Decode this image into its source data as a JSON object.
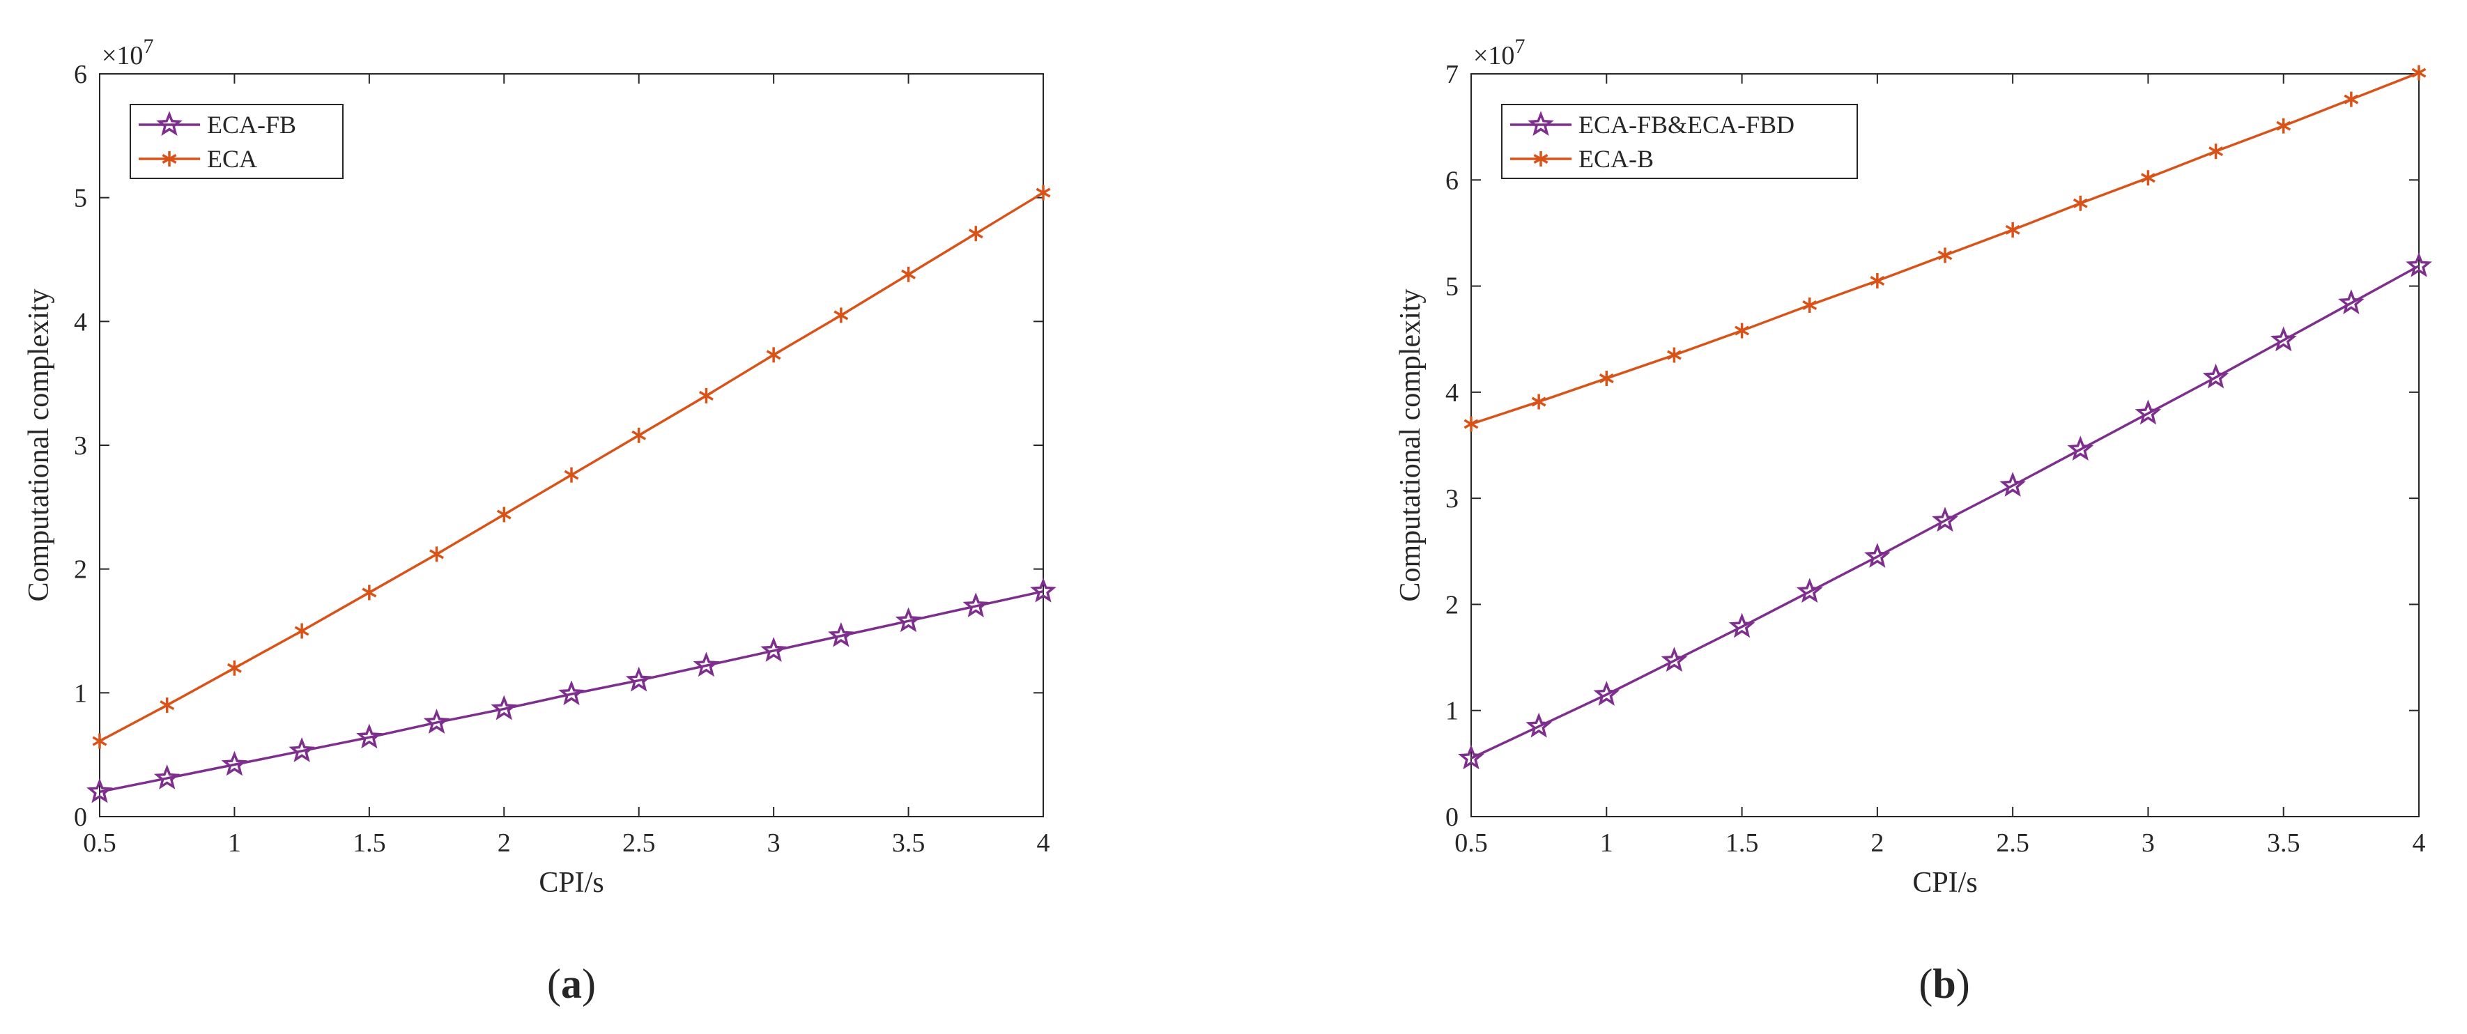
{
  "chart_data": [
    {
      "type": "line",
      "panel": "a",
      "xlabel": "CPI/s",
      "ylabel": "Computational complexity",
      "y_scale_label": "×10",
      "y_scale_exponent": "7",
      "xlim": [
        0.5,
        4
      ],
      "ylim": [
        0,
        6
      ],
      "xticks": [
        0.5,
        1,
        1.5,
        2,
        2.5,
        3,
        3.5,
        4
      ],
      "xtick_labels": [
        "0.5",
        "1",
        "1.5",
        "2",
        "2.5",
        "3",
        "3.5",
        "4"
      ],
      "yticks": [
        0,
        1,
        2,
        3,
        4,
        5,
        6
      ],
      "ytick_labels": [
        "0",
        "1",
        "2",
        "3",
        "4",
        "5",
        "6"
      ],
      "legend_position": "top-left",
      "x": [
        0.5,
        0.75,
        1,
        1.25,
        1.5,
        1.75,
        2,
        2.25,
        2.5,
        2.75,
        3,
        3.25,
        3.5,
        3.75,
        4
      ],
      "series": [
        {
          "name": "ECA-FB",
          "color": "#7E2F8E",
          "marker": "star",
          "values": [
            0.2,
            0.31,
            0.42,
            0.53,
            0.64,
            0.76,
            0.87,
            0.99,
            1.1,
            1.22,
            1.34,
            1.46,
            1.58,
            1.7,
            1.82
          ]
        },
        {
          "name": "ECA",
          "color": "#D95319",
          "marker": "asterisk",
          "values": [
            0.61,
            0.9,
            1.2,
            1.5,
            1.81,
            2.12,
            2.44,
            2.76,
            3.08,
            3.4,
            3.73,
            4.05,
            4.38,
            4.71,
            5.04
          ]
        }
      ],
      "caption": "a"
    },
    {
      "type": "line",
      "panel": "b",
      "xlabel": "CPI/s",
      "ylabel": "Computational complexity",
      "y_scale_label": "×10",
      "y_scale_exponent": "7",
      "xlim": [
        0.5,
        4
      ],
      "ylim": [
        0,
        7
      ],
      "xticks": [
        0.5,
        1,
        1.5,
        2,
        2.5,
        3,
        3.5,
        4
      ],
      "xtick_labels": [
        "0.5",
        "1",
        "1.5",
        "2",
        "2.5",
        "3",
        "3.5",
        "4"
      ],
      "yticks": [
        0,
        1,
        2,
        3,
        4,
        5,
        6,
        7
      ],
      "ytick_labels": [
        "0",
        "1",
        "2",
        "3",
        "4",
        "5",
        "6",
        "7"
      ],
      "legend_position": "top-left",
      "x": [
        0.5,
        0.75,
        1,
        1.25,
        1.5,
        1.75,
        2,
        2.25,
        2.5,
        2.75,
        3,
        3.25,
        3.5,
        3.75,
        4
      ],
      "series": [
        {
          "name": "ECA-FB&ECA-FBD",
          "color": "#7E2F8E",
          "marker": "star",
          "values": [
            0.55,
            0.85,
            1.15,
            1.47,
            1.79,
            2.12,
            2.45,
            2.79,
            3.12,
            3.46,
            3.8,
            4.14,
            4.49,
            4.84,
            5.19
          ]
        },
        {
          "name": "ECA-B",
          "color": "#D95319",
          "marker": "asterisk",
          "values": [
            3.7,
            3.91,
            4.13,
            4.35,
            4.58,
            4.82,
            5.05,
            5.29,
            5.53,
            5.78,
            6.02,
            6.27,
            6.51,
            6.76,
            7.01
          ]
        }
      ],
      "caption": "b"
    }
  ]
}
